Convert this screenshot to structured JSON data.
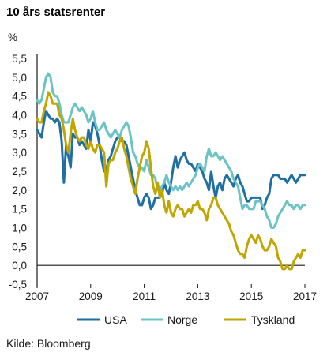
{
  "chart_data": {
    "type": "line",
    "title": "10 års statsrenter",
    "ylabel": "%",
    "ylim": [
      -0.5,
      5.5
    ],
    "xlim": [
      2007,
      2017
    ],
    "yticks": [
      "-0,5",
      "0,0",
      "0,5",
      "1,0",
      "1,5",
      "2,0",
      "2,5",
      "3,0",
      "3,5",
      "4,0",
      "4,5",
      "5,0",
      "5,5"
    ],
    "ytick_values": [
      -0.5,
      0,
      0.5,
      1,
      1.5,
      2,
      2.5,
      3,
      3.5,
      4,
      4.5,
      5,
      5.5
    ],
    "xticks": [
      "2007",
      "2009",
      "2011",
      "2013",
      "2015",
      "2017"
    ],
    "xtick_values": [
      2007,
      2009,
      2011,
      2013,
      2015,
      2017
    ],
    "legend_position": "bottom",
    "source": "Kilde: Bloomberg",
    "series": [
      {
        "name": "USA",
        "color": "#1f6fa3",
        "x": [
          2007.0,
          2007.08,
          2007.17,
          2007.25,
          2007.33,
          2007.42,
          2007.5,
          2007.58,
          2007.67,
          2007.75,
          2007.83,
          2007.92,
          2008.0,
          2008.08,
          2008.17,
          2008.25,
          2008.33,
          2008.42,
          2008.5,
          2008.58,
          2008.67,
          2008.75,
          2008.83,
          2008.92,
          2009.0,
          2009.08,
          2009.17,
          2009.25,
          2009.33,
          2009.42,
          2009.5,
          2009.58,
          2009.67,
          2009.75,
          2009.83,
          2009.92,
          2010.0,
          2010.08,
          2010.17,
          2010.25,
          2010.33,
          2010.42,
          2010.5,
          2010.58,
          2010.67,
          2010.75,
          2010.83,
          2010.92,
          2011.0,
          2011.08,
          2011.17,
          2011.25,
          2011.33,
          2011.42,
          2011.5,
          2011.58,
          2011.67,
          2011.75,
          2011.83,
          2011.92,
          2012.0,
          2012.08,
          2012.17,
          2012.25,
          2012.33,
          2012.42,
          2012.5,
          2012.58,
          2012.67,
          2012.75,
          2012.83,
          2012.92,
          2013.0,
          2013.08,
          2013.17,
          2013.25,
          2013.33,
          2013.42,
          2013.5,
          2013.58,
          2013.67,
          2013.75,
          2013.83,
          2013.92,
          2014.0,
          2014.08,
          2014.17,
          2014.25,
          2014.33,
          2014.42,
          2014.5,
          2014.58,
          2014.67,
          2014.75,
          2014.83,
          2014.92,
          2015.0,
          2015.08,
          2015.17,
          2015.25,
          2015.33,
          2015.42,
          2015.5,
          2015.58,
          2015.67,
          2015.75,
          2015.83,
          2015.92,
          2016.0,
          2016.08,
          2016.17,
          2016.25,
          2016.33,
          2016.42,
          2016.5,
          2016.58,
          2016.67,
          2016.75,
          2016.83,
          2016.92,
          2017.0
        ],
        "y": [
          4.7,
          4.6,
          4.6,
          4.7,
          4.8,
          5.0,
          5.0,
          4.6,
          4.5,
          4.5,
          4.2,
          4.0,
          3.8,
          3.7,
          3.5,
          3.7,
          3.9,
          4.0,
          4.0,
          3.9,
          3.8,
          3.8,
          3.4,
          2.2,
          2.5,
          3.0,
          2.7,
          3.1,
          3.5,
          3.7,
          3.6,
          3.6,
          3.4,
          3.3,
          3.4,
          3.8,
          3.8,
          3.7,
          3.9,
          3.8,
          3.4,
          3.0,
          2.9,
          2.6,
          2.5,
          2.6,
          2.8,
          3.3,
          3.4,
          3.6,
          3.5,
          3.3,
          3.1,
          3.0,
          2.9,
          2.2,
          2.0,
          2.1,
          2.0,
          1.9,
          2.0,
          2.0,
          2.2,
          2.0,
          1.6,
          1.6,
          1.5,
          1.7,
          1.7,
          1.7,
          1.6,
          1.8,
          1.9,
          2.0,
          1.9,
          1.7,
          2.1,
          2.5,
          2.6,
          2.8,
          2.6,
          2.6,
          2.7,
          2.9,
          2.7,
          2.7,
          2.7,
          2.7,
          2.5,
          2.5,
          2.5,
          2.4,
          2.5,
          2.3,
          2.2,
          2.2,
          1.7,
          2.0,
          1.9,
          2.0,
          2.1,
          2.3,
          2.2,
          2.2,
          2.0,
          2.1,
          2.2,
          2.3,
          1.9,
          1.7,
          1.8,
          1.8,
          1.8,
          1.5,
          1.5,
          1.6,
          1.6,
          1.8,
          2.4,
          2.4,
          2.4
        ],
        "y_visible": true
      },
      {
        "name": "Norge",
        "color": "#6cc3c4",
        "x": [],
        "y": []
      },
      {
        "name": "Tyskland",
        "color": "#bfa600",
        "x": [],
        "y": []
      }
    ]
  }
}
